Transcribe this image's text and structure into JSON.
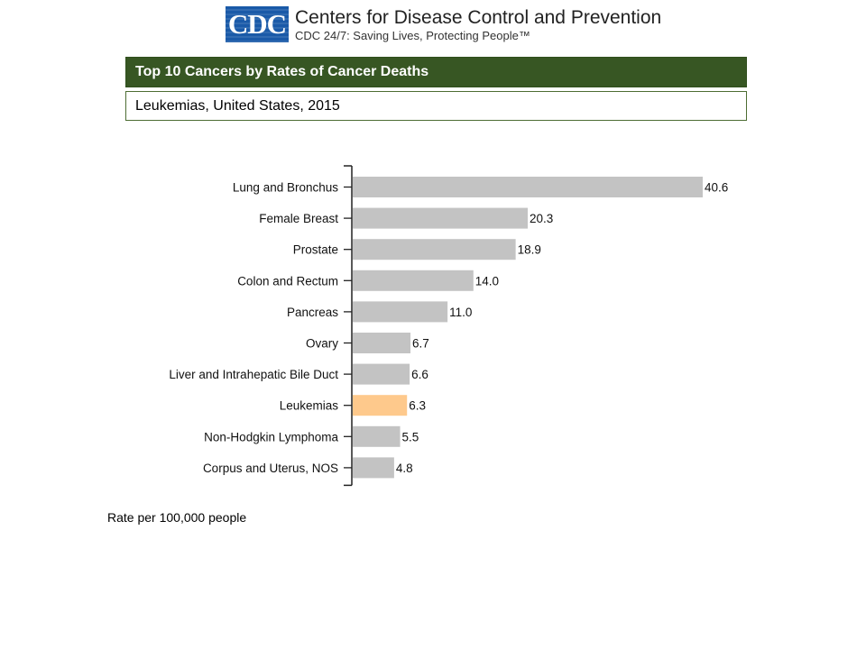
{
  "logo": {
    "mark": "CDC",
    "name": "Centers for Disease Control and Prevention",
    "tagline": "CDC 24/7: Saving Lives, Protecting People™"
  },
  "header": {
    "title": "Top 10 Cancers by Rates of Cancer Deaths",
    "subtitle": "Leukemias, United States, 2015",
    "bar_color": "#375623"
  },
  "footnote": "Rate per 100,000 people",
  "chart_data": {
    "type": "bar",
    "orientation": "horizontal",
    "categories": [
      "Lung and Bronchus",
      "Female Breast",
      "Prostate",
      "Colon and Rectum",
      "Pancreas",
      "Ovary",
      "Liver and Intrahepatic Bile Duct",
      "Leukemias",
      "Non-Hodgkin Lymphoma",
      "Corpus and Uterus, NOS"
    ],
    "values": [
      40.6,
      20.3,
      18.9,
      14.0,
      11.0,
      6.7,
      6.6,
      6.3,
      5.5,
      4.8
    ],
    "value_labels": [
      "40.6",
      "20.3",
      "18.9",
      "14.0",
      "11.0",
      "6.7",
      "6.6",
      "6.3",
      "5.5",
      "4.8"
    ],
    "highlight_category": "Leukemias",
    "bar_color": "#c3c3c3",
    "highlight_color": "#fec98c",
    "xlim": [
      0,
      40.6
    ],
    "grid": false,
    "legend": "none"
  }
}
